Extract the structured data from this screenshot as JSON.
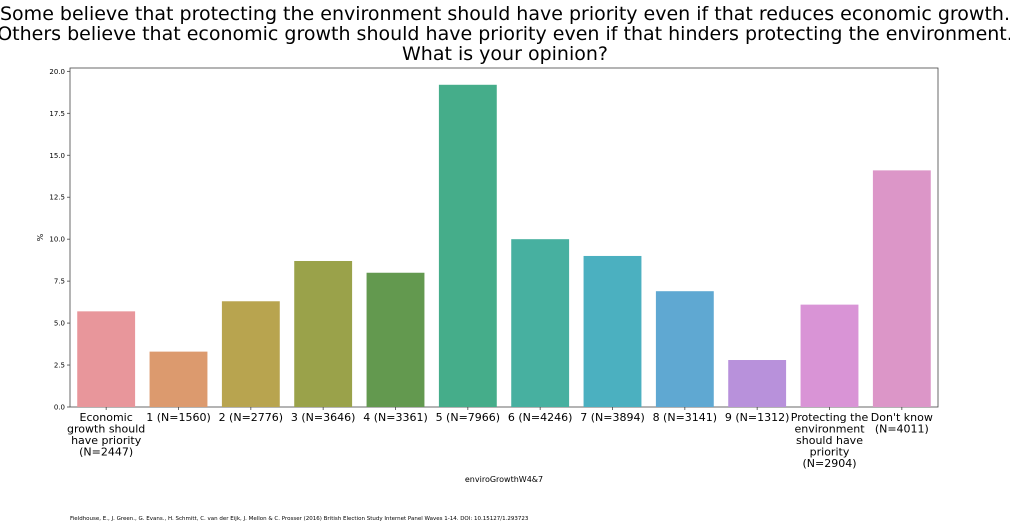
{
  "chart_data": {
    "type": "bar",
    "title_lines": [
      "Some believe that protecting the environment should have priority even if that reduces economic growth.",
      "Others believe that economic growth should have priority even if that hinders protecting the environment.",
      "What is your opinion?"
    ],
    "xlabel": "enviroGrowthW4&7",
    "ylabel": "%",
    "ylim": [
      0,
      20.2
    ],
    "yticks": [
      "0.0",
      "2.5",
      "5.0",
      "7.5",
      "10.0",
      "12.5",
      "15.0",
      "17.5",
      "20.0"
    ],
    "categories": [
      [
        "Economic",
        "growth should",
        "have priority",
        "(N=2447)"
      ],
      [
        "1 (N=1560)"
      ],
      [
        "2 (N=2776)"
      ],
      [
        "3 (N=3646)"
      ],
      [
        "4 (N=3361)"
      ],
      [
        "5 (N=7966)"
      ],
      [
        "6 (N=4246)"
      ],
      [
        "7 (N=3894)"
      ],
      [
        "8 (N=3141)"
      ],
      [
        "9 (N=1312)"
      ],
      [
        "Protecting the",
        "environment",
        "should have",
        "priority",
        "(N=2904)"
      ],
      [
        "Don't know",
        "(N=4011)"
      ]
    ],
    "values": [
      5.7,
      3.3,
      6.3,
      8.7,
      8.0,
      19.2,
      10.0,
      9.0,
      6.9,
      2.8,
      6.1,
      14.1
    ],
    "colors": [
      "#e8969b",
      "#dc9a6e",
      "#b8a44f",
      "#9aa24a",
      "#63994f",
      "#45ad8a",
      "#47b0a0",
      "#4bb0c0",
      "#5fa8d2",
      "#b891db",
      "#d994d6",
      "#dc96c8"
    ],
    "grid": false,
    "legend": "none",
    "source": "Fieldhouse, E., J. Green., G. Evans., H. Schmitt, C. van der Eijk, J. Mellon & C. Prosser (2016) British Election Study Internet Panel Waves 1-14. DOI: 10.15127/1.293723"
  }
}
